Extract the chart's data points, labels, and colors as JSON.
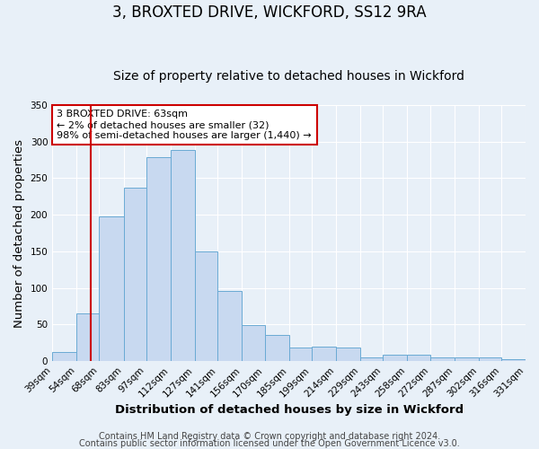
{
  "title": "3, BROXTED DRIVE, WICKFORD, SS12 9RA",
  "subtitle": "Size of property relative to detached houses in Wickford",
  "xlabel": "Distribution of detached houses by size in Wickford",
  "ylabel": "Number of detached properties",
  "bins": [
    39,
    54,
    68,
    83,
    97,
    112,
    127,
    141,
    156,
    170,
    185,
    199,
    214,
    229,
    243,
    258,
    272,
    287,
    302,
    316,
    331
  ],
  "counts": [
    13,
    65,
    198,
    237,
    278,
    289,
    150,
    96,
    49,
    36,
    19,
    20,
    19,
    5,
    9,
    9,
    5,
    5,
    5,
    3
  ],
  "bar_color": "#c8d9f0",
  "bar_edge_color": "#6aaad4",
  "vline_x": 63,
  "vline_color": "#cc0000",
  "annotation_line1": "3 BROXTED DRIVE: 63sqm",
  "annotation_line2": "← 2% of detached houses are smaller (32)",
  "annotation_line3": "98% of semi-detached houses are larger (1,440) →",
  "annotation_box_color": "#ffffff",
  "annotation_box_edge": "#cc0000",
  "ylim": [
    0,
    350
  ],
  "yticks": [
    0,
    50,
    100,
    150,
    200,
    250,
    300,
    350
  ],
  "tick_labels": [
    "39sqm",
    "54sqm",
    "68sqm",
    "83sqm",
    "97sqm",
    "112sqm",
    "127sqm",
    "141sqm",
    "156sqm",
    "170sqm",
    "185sqm",
    "199sqm",
    "214sqm",
    "229sqm",
    "243sqm",
    "258sqm",
    "272sqm",
    "287sqm",
    "302sqm",
    "316sqm",
    "331sqm"
  ],
  "footer1": "Contains HM Land Registry data © Crown copyright and database right 2024.",
  "footer2": "Contains public sector information licensed under the Open Government Licence v3.0.",
  "background_color": "#e8f0f8",
  "plot_bg_color": "#e8f0f8",
  "grid_color": "#ffffff",
  "title_fontsize": 12,
  "subtitle_fontsize": 10,
  "axis_label_fontsize": 9.5,
  "tick_fontsize": 7.5,
  "footer_fontsize": 7
}
